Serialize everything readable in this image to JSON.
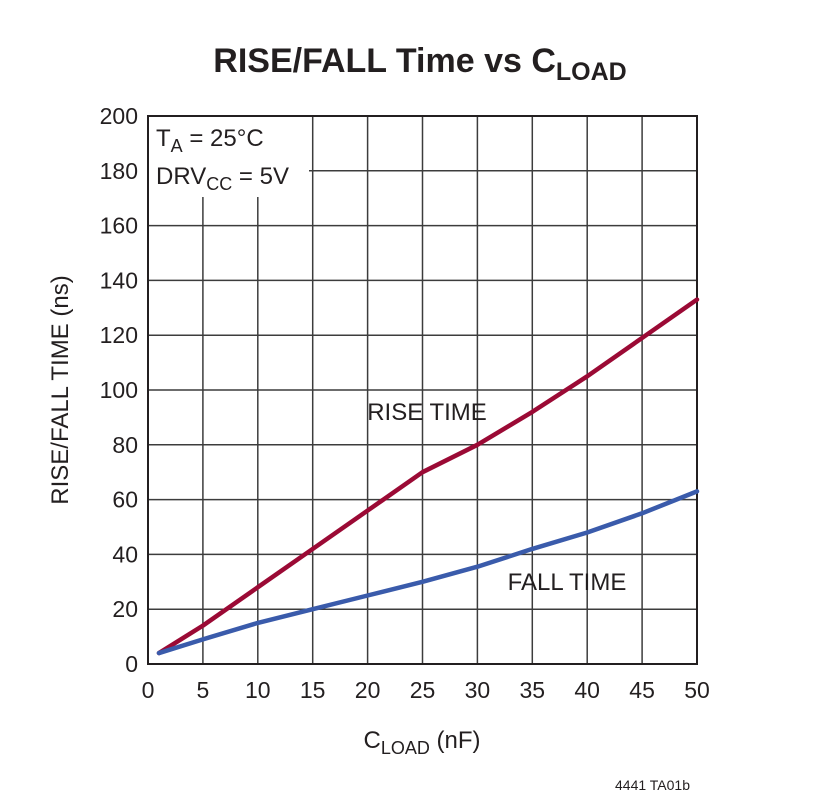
{
  "chart_data": {
    "type": "line",
    "title": [
      "RISE/FALL Time vs C",
      "LOAD"
    ],
    "xlabel": [
      "C",
      "LOAD",
      " (nF)"
    ],
    "ylabel": "RISE/FALL TIME (ns)",
    "annotations": [
      [
        "T",
        "A",
        " = 25°C"
      ],
      [
        "DRV",
        "CC",
        " = 5V"
      ]
    ],
    "footnote": "4441 TA01b",
    "x": [
      1,
      5,
      10,
      15,
      20,
      25,
      30,
      35,
      40,
      45,
      50
    ],
    "series": [
      {
        "name": "RISE TIME",
        "color": "#9b0a35",
        "values": [
          4,
          14,
          28,
          42,
          56,
          70,
          80,
          92,
          105,
          119,
          133
        ]
      },
      {
        "name": "FALL TIME",
        "color": "#3a5bab",
        "values": [
          4,
          9,
          15,
          20,
          25,
          30,
          35.5,
          42,
          48,
          55,
          63
        ]
      }
    ],
    "xlim": [
      0,
      50
    ],
    "xticks": [
      0,
      5,
      10,
      15,
      20,
      25,
      30,
      35,
      40,
      45,
      50
    ],
    "ylim": [
      0,
      200
    ],
    "yticks": [
      0,
      20,
      40,
      60,
      80,
      100,
      120,
      140,
      160,
      180,
      200
    ],
    "grid": true
  }
}
